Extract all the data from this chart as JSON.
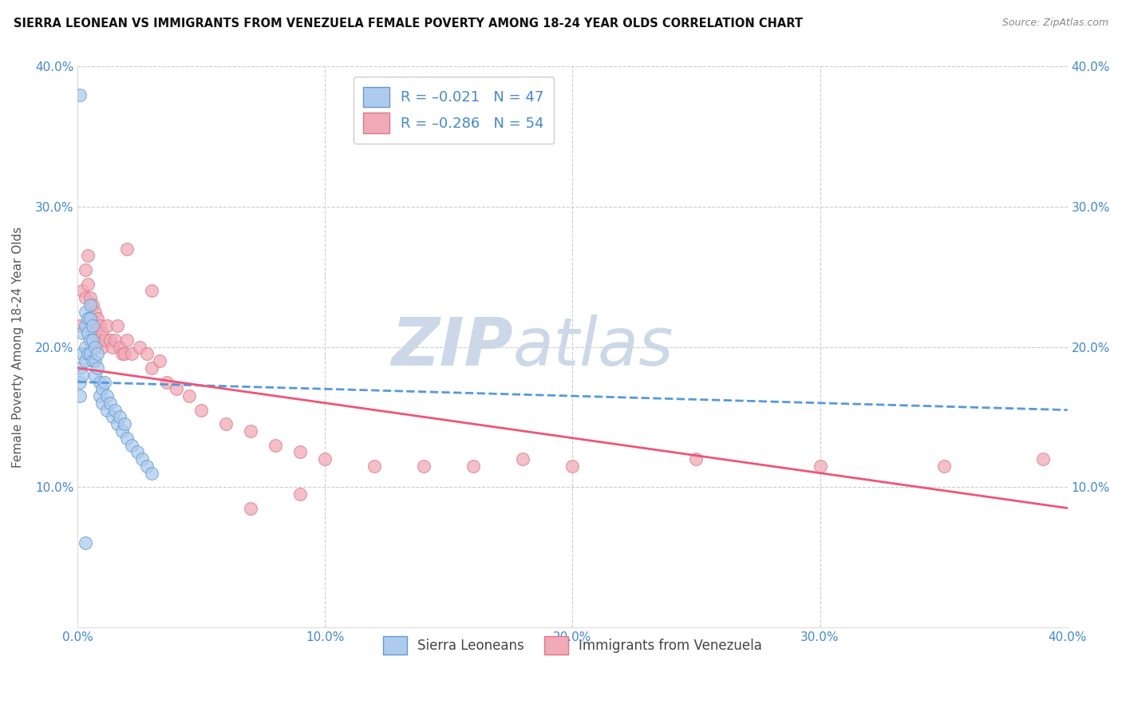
{
  "title": "SIERRA LEONEAN VS IMMIGRANTS FROM VENEZUELA FEMALE POVERTY AMONG 18-24 YEAR OLDS CORRELATION CHART",
  "source": "Source: ZipAtlas.com",
  "ylabel": "Female Poverty Among 18-24 Year Olds",
  "xlim": [
    0.0,
    0.4
  ],
  "ylim": [
    0.0,
    0.4
  ],
  "x_ticks": [
    0.0,
    0.1,
    0.2,
    0.3,
    0.4
  ],
  "x_tick_labels": [
    "0.0%",
    "10.0%",
    "20.0%",
    "30.0%",
    "40.0%"
  ],
  "y_ticks": [
    0.1,
    0.2,
    0.3,
    0.4
  ],
  "y_tick_labels": [
    "10.0%",
    "20.0%",
    "30.0%",
    "40.0%"
  ],
  "legend_labels": [
    "Sierra Leoneans",
    "Immigrants from Venezuela"
  ],
  "sl_color": "#aecbee",
  "sl_edge_color": "#6699cc",
  "ven_color": "#f0aab8",
  "ven_edge_color": "#dd7788",
  "sl_line_color": "#5599dd",
  "ven_line_color": "#ee5577",
  "watermark_zip": "ZIP",
  "watermark_atlas": "atlas",
  "watermark_color": "#ccd8e8",
  "background_color": "#ffffff",
  "grid_color": "#cccccc",
  "sl_scatter_x": [
    0.001,
    0.001,
    0.001,
    0.002,
    0.002,
    0.002,
    0.003,
    0.003,
    0.003,
    0.003,
    0.004,
    0.004,
    0.004,
    0.005,
    0.005,
    0.005,
    0.005,
    0.006,
    0.006,
    0.006,
    0.007,
    0.007,
    0.007,
    0.008,
    0.008,
    0.009,
    0.009,
    0.01,
    0.01,
    0.011,
    0.012,
    0.012,
    0.013,
    0.014,
    0.015,
    0.016,
    0.017,
    0.018,
    0.019,
    0.02,
    0.022,
    0.024,
    0.026,
    0.028,
    0.03,
    0.001,
    0.003
  ],
  "sl_scatter_y": [
    0.185,
    0.175,
    0.165,
    0.21,
    0.195,
    0.18,
    0.225,
    0.215,
    0.2,
    0.19,
    0.22,
    0.21,
    0.195,
    0.23,
    0.22,
    0.205,
    0.195,
    0.215,
    0.205,
    0.19,
    0.2,
    0.19,
    0.18,
    0.195,
    0.185,
    0.175,
    0.165,
    0.17,
    0.16,
    0.175,
    0.165,
    0.155,
    0.16,
    0.15,
    0.155,
    0.145,
    0.15,
    0.14,
    0.145,
    0.135,
    0.13,
    0.125,
    0.12,
    0.115,
    0.11,
    0.38,
    0.06
  ],
  "ven_scatter_x": [
    0.001,
    0.002,
    0.003,
    0.003,
    0.004,
    0.004,
    0.005,
    0.005,
    0.006,
    0.006,
    0.007,
    0.007,
    0.008,
    0.008,
    0.009,
    0.01,
    0.01,
    0.011,
    0.012,
    0.013,
    0.014,
    0.015,
    0.016,
    0.017,
    0.018,
    0.019,
    0.02,
    0.022,
    0.025,
    0.028,
    0.03,
    0.033,
    0.036,
    0.04,
    0.045,
    0.05,
    0.06,
    0.07,
    0.08,
    0.09,
    0.1,
    0.12,
    0.14,
    0.16,
    0.18,
    0.2,
    0.25,
    0.3,
    0.35,
    0.39,
    0.02,
    0.03,
    0.07,
    0.09
  ],
  "ven_scatter_y": [
    0.215,
    0.24,
    0.255,
    0.235,
    0.265,
    0.245,
    0.235,
    0.22,
    0.23,
    0.215,
    0.225,
    0.21,
    0.22,
    0.205,
    0.215,
    0.2,
    0.21,
    0.205,
    0.215,
    0.205,
    0.2,
    0.205,
    0.215,
    0.2,
    0.195,
    0.195,
    0.205,
    0.195,
    0.2,
    0.195,
    0.185,
    0.19,
    0.175,
    0.17,
    0.165,
    0.155,
    0.145,
    0.14,
    0.13,
    0.125,
    0.12,
    0.115,
    0.115,
    0.115,
    0.12,
    0.115,
    0.12,
    0.115,
    0.115,
    0.12,
    0.27,
    0.24,
    0.085,
    0.095
  ],
  "sl_trend_x0": 0.0,
  "sl_trend_x1": 0.4,
  "sl_trend_y0": 0.175,
  "sl_trend_y1": 0.155,
  "ven_trend_x0": 0.0,
  "ven_trend_x1": 0.4,
  "ven_trend_y0": 0.185,
  "ven_trend_y1": 0.085
}
